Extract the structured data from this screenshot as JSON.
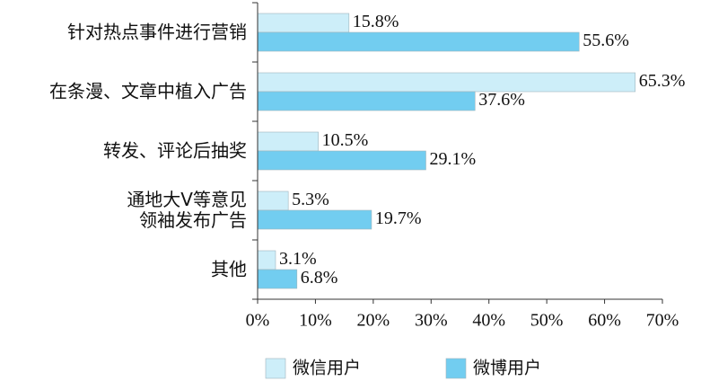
{
  "chart_data": {
    "type": "hbar",
    "categories": [
      "针对热点事件进行营销",
      "在条漫、文章中植入广告",
      "转发、评论后抽奖",
      "通地大V等意见\n领袖发布广告",
      "其他"
    ],
    "series": [
      {
        "name": "微信用户",
        "color": "#cdeef9",
        "values": [
          15.8,
          65.3,
          10.5,
          5.3,
          3.1
        ],
        "value_labels": [
          "15.8%",
          "65.3%",
          "10.5%",
          "5.3%",
          "3.1%"
        ]
      },
      {
        "name": "微博用户",
        "color": "#72cdf0",
        "values": [
          55.6,
          37.6,
          29.1,
          19.7,
          6.8
        ],
        "value_labels": [
          "55.6%",
          "37.6%",
          "29.1%",
          "19.7%",
          "6.8%"
        ]
      }
    ],
    "xlim": [
      0,
      70
    ],
    "xticks": [
      {
        "value": 0,
        "label": "0%"
      },
      {
        "value": 10,
        "label": "10%"
      },
      {
        "value": 20,
        "label": "20%"
      },
      {
        "value": 30,
        "label": "30%"
      },
      {
        "value": 40,
        "label": "40%"
      },
      {
        "value": 50,
        "label": "50%"
      },
      {
        "value": 60,
        "label": "60%"
      },
      {
        "value": 70,
        "label": "70%"
      }
    ]
  }
}
